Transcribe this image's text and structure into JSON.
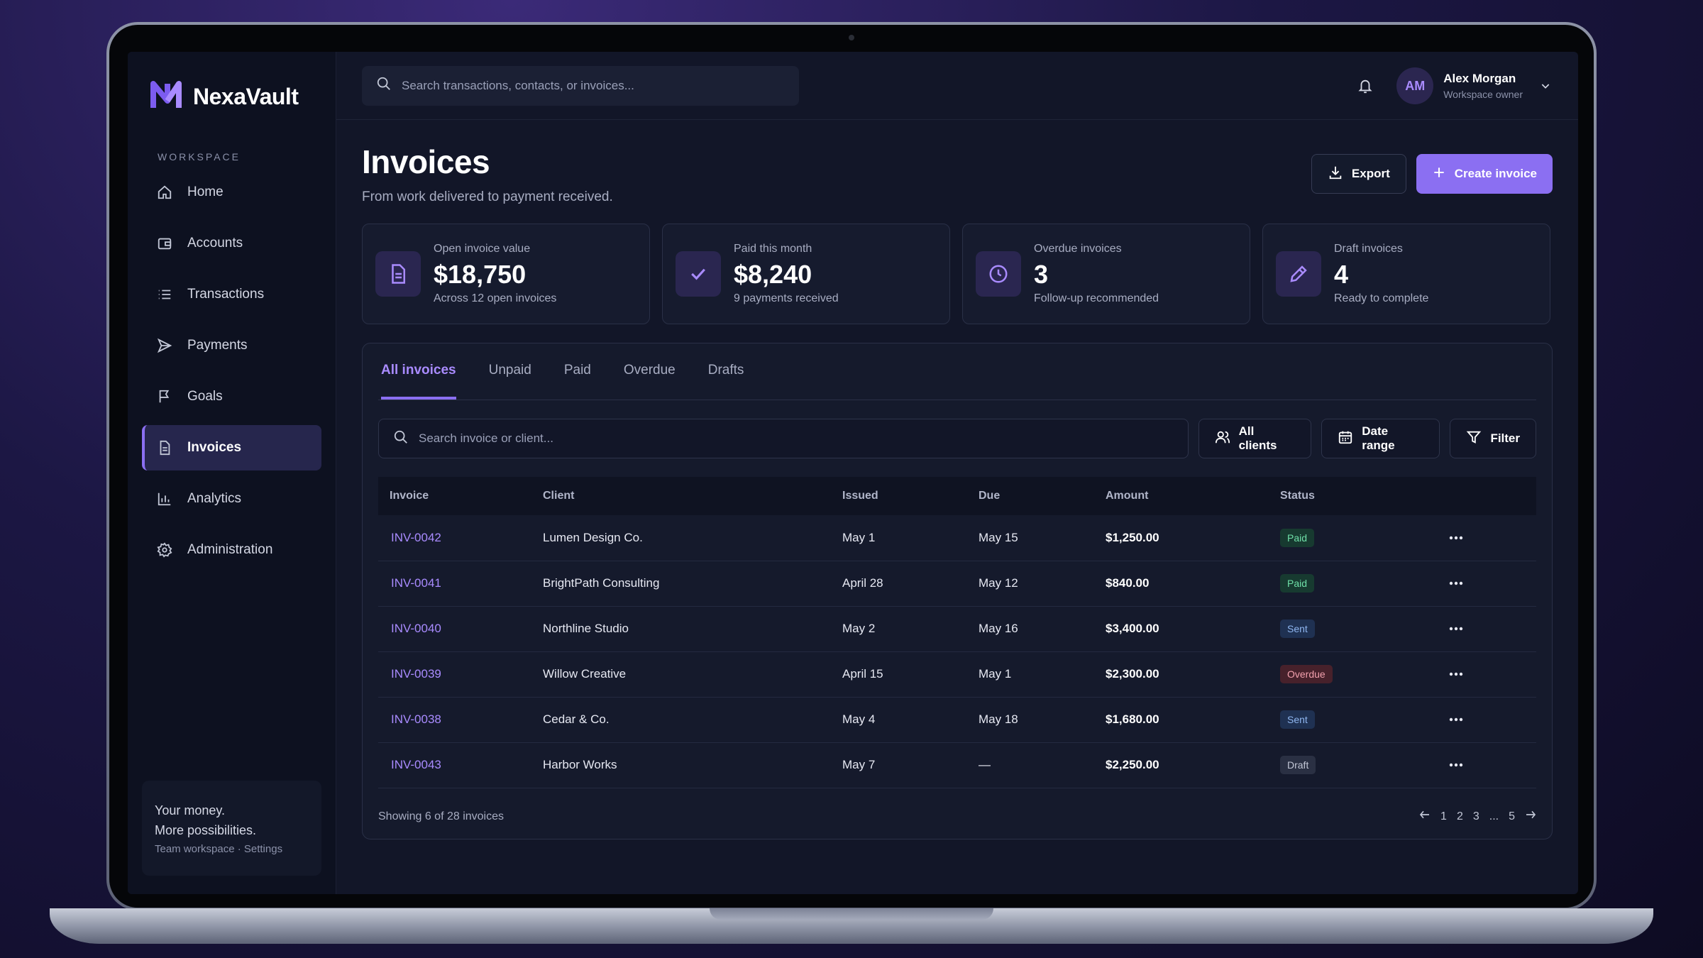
{
  "brand": {
    "name": "NexaVault",
    "accent": "#8b6ff2"
  },
  "sidebar": {
    "section_label": "WORKSPACE",
    "items": [
      {
        "label": "Home",
        "icon": "home-icon"
      },
      {
        "label": "Accounts",
        "icon": "wallet-icon"
      },
      {
        "label": "Transactions",
        "icon": "list-icon"
      },
      {
        "label": "Payments",
        "icon": "send-icon"
      },
      {
        "label": "Goals",
        "icon": "flag-icon"
      },
      {
        "label": "Invoices",
        "icon": "document-icon",
        "active": true
      },
      {
        "label": "Analytics",
        "icon": "bar-chart-icon"
      },
      {
        "label": "Administration",
        "icon": "gear-icon"
      }
    ],
    "footer": {
      "line1": "Your money.",
      "line2": "More possibilities.",
      "meta": "Team workspace · Settings"
    }
  },
  "topbar": {
    "search_placeholder": "Search transactions, contacts, or invoices...",
    "user": {
      "initials": "AM",
      "name": "Alex Morgan",
      "role": "Workspace owner"
    }
  },
  "page": {
    "title": "Invoices",
    "subtitle": "From work delivered to payment received.",
    "export_label": "Export",
    "create_label": "Create invoice"
  },
  "cards": [
    {
      "label": "Open invoice value",
      "value": "$18,750",
      "sub": "Across 12 open invoices",
      "icon": "document-icon"
    },
    {
      "label": "Paid this month",
      "value": "$8,240",
      "sub": "9 payments received",
      "icon": "check-icon"
    },
    {
      "label": "Overdue invoices",
      "value": "3",
      "sub": "Follow-up recommended",
      "icon": "clock-icon"
    },
    {
      "label": "Draft invoices",
      "value": "4",
      "sub": "Ready to complete",
      "icon": "pencil-icon"
    }
  ],
  "tabs": [
    "All invoices",
    "Unpaid",
    "Paid",
    "Overdue",
    "Drafts"
  ],
  "filters": {
    "search_placeholder": "Search invoice or client...",
    "clients": "All clients",
    "date": "Date range",
    "filter": "Filter"
  },
  "table": {
    "headers": [
      "Invoice",
      "Client",
      "Issued",
      "Due",
      "Amount",
      "Status"
    ],
    "rows": [
      {
        "invoice": "INV-0042",
        "client": "Lumen Design Co.",
        "issued": "May 1",
        "due": "May 15",
        "amount": "$1,250.00",
        "status": "Paid"
      },
      {
        "invoice": "INV-0041",
        "client": "BrightPath Consulting",
        "issued": "April 28",
        "due": "May 12",
        "amount": "$840.00",
        "status": "Paid"
      },
      {
        "invoice": "INV-0040",
        "client": "Northline Studio",
        "issued": "May 2",
        "due": "May 16",
        "amount": "$3,400.00",
        "status": "Sent"
      },
      {
        "invoice": "INV-0039",
        "client": "Willow Creative",
        "issued": "April 15",
        "due": "May 1",
        "amount": "$2,300.00",
        "status": "Overdue"
      },
      {
        "invoice": "INV-0038",
        "client": "Cedar & Co.",
        "issued": "May 4",
        "due": "May 18",
        "amount": "$1,680.00",
        "status": "Sent"
      },
      {
        "invoice": "INV-0043",
        "client": "Harbor Works",
        "issued": "May 7",
        "due": "—",
        "amount": "$2,250.00",
        "status": "Draft"
      }
    ],
    "footer": "Showing 6 of 28 invoices",
    "pages": [
      "1",
      "2",
      "3",
      "...",
      "5"
    ]
  }
}
